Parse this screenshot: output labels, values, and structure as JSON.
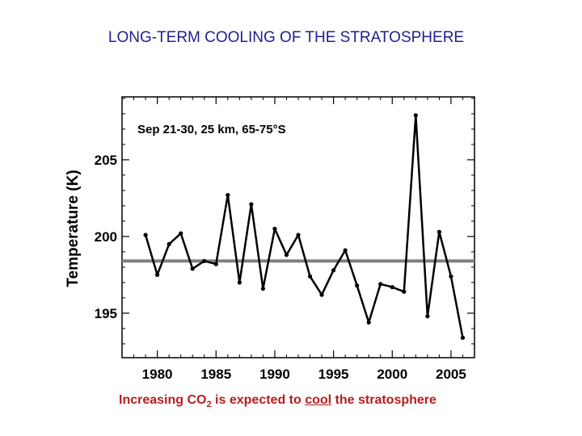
{
  "title": "LONG-TERM COOLING OF THE STRATOSPHERE",
  "caption": {
    "before": "Increasing CO",
    "subscript": "2",
    "middle": " is expected to ",
    "underlined": "cool",
    "after": " the stratosphere"
  },
  "colors": {
    "title": "#1f1f8f",
    "caption": "#b51e1e",
    "series": "#000000",
    "reference_line": "#808080"
  },
  "chart_data": {
    "type": "line",
    "annotation": "Sep 21-30, 25 km, 65-75°S",
    "xlabel": "",
    "ylabel": "Temperature (K)",
    "xlim": [
      1977,
      2007
    ],
    "ylim": [
      192.1,
      209.1
    ],
    "x_ticks": [
      1980,
      1985,
      1990,
      1995,
      2000,
      2005
    ],
    "y_ticks": [
      195,
      200,
      205
    ],
    "reference_line": 198.4,
    "grid": false,
    "series": [
      {
        "name": "",
        "x": [
          1979,
          1980,
          1981,
          1982,
          1983,
          1984,
          1985,
          1986,
          1987,
          1988,
          1989,
          1990,
          1991,
          1992,
          1993,
          1994,
          1995,
          1996,
          1997,
          1998,
          1999,
          2000,
          2001,
          2002,
          2003,
          2004,
          2005,
          2006
        ],
        "values": [
          200.1,
          197.5,
          199.5,
          200.2,
          197.9,
          198.4,
          198.2,
          202.7,
          197.0,
          202.1,
          196.6,
          200.5,
          198.8,
          200.1,
          197.4,
          196.2,
          197.8,
          199.1,
          196.8,
          194.4,
          196.9,
          196.7,
          196.4,
          207.9,
          194.8,
          200.3,
          197.4,
          193.4
        ]
      }
    ]
  }
}
